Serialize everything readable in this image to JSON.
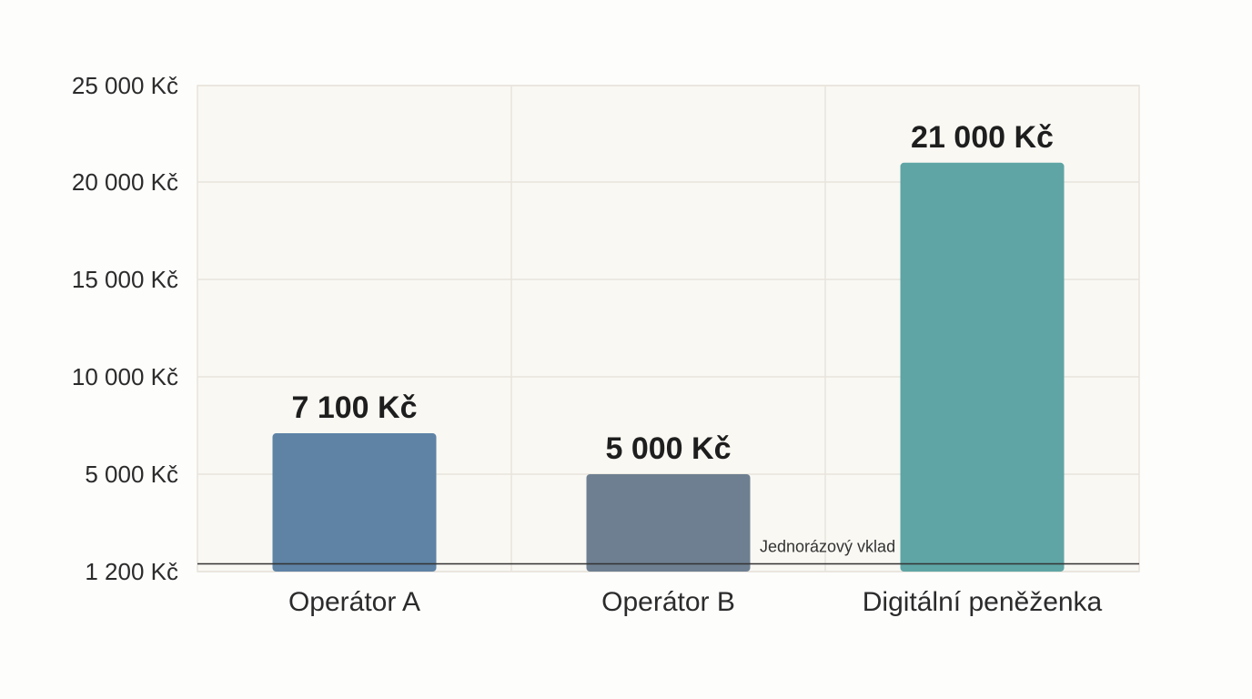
{
  "chart_data": {
    "type": "bar",
    "categories": [
      "Operátor A",
      "Operátor B",
      "Digitální peněženka"
    ],
    "values": [
      7100,
      5000,
      21000
    ],
    "value_labels": [
      "7 100 Kč",
      "5 000 Kč",
      "21 000 Kč"
    ],
    "bar_colors": [
      "#5e83a5",
      "#6e7f91",
      "#5fa5a5"
    ],
    "ylim": [
      1200,
      25000
    ],
    "y_ticks": [
      1200,
      5000,
      10000,
      15000,
      20000,
      25000
    ],
    "y_tick_labels": [
      "1 200 Kč",
      "5 000 Kč",
      "10 000 Kč",
      "15 000 Kč",
      "20 000 Kč",
      "25 000 Kč"
    ],
    "reference_line": {
      "value": 1500,
      "label": "Jednorázový vklad",
      "color": "#333333"
    },
    "grid": true,
    "plot_background": "#f9f8f3",
    "grid_color": "#e8e4dc"
  }
}
